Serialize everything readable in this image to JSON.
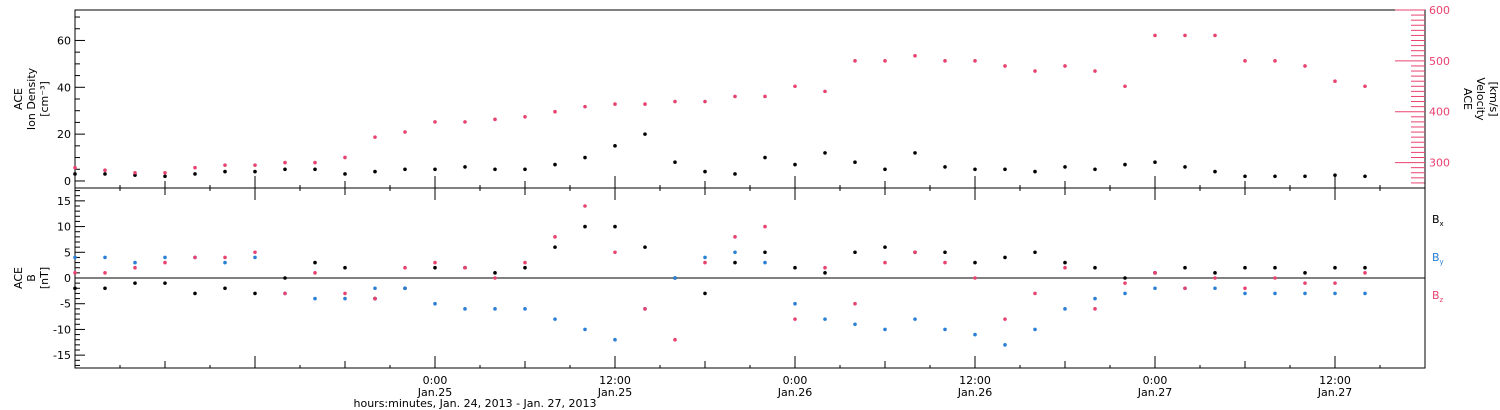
{
  "chart_data": [
    {
      "panel": "ion-density-velocity",
      "type": "scatter",
      "left_axis": {
        "label_lines": [
          "ACE",
          "Ion Density",
          "[cm⁻³]"
        ],
        "ylim": [
          -3,
          73
        ],
        "ticks": [
          0,
          20,
          40,
          60
        ],
        "tick_labels": [
          "0",
          "20",
          "40",
          "60"
        ]
      },
      "right_axis": {
        "label_lines": [
          "ACE",
          "Velocity",
          "[km/s]"
        ],
        "ylim": [
          250,
          600
        ],
        "ticks": [
          300,
          400,
          500,
          600
        ],
        "tick_labels": [
          "300",
          "400",
          "500",
          "600"
        ],
        "color": "#e8436f"
      },
      "series": [
        {
          "key": "density",
          "axis": "left",
          "color": "#000000",
          "x": [
            0,
            2,
            4,
            6,
            8,
            10,
            12,
            14,
            16,
            18,
            20,
            22,
            24,
            26,
            28,
            30,
            32,
            34,
            36,
            38,
            40,
            42,
            44,
            46,
            48,
            50,
            52,
            54,
            56,
            58,
            60,
            62,
            64,
            66,
            68,
            70,
            72,
            74,
            76,
            78,
            80,
            82,
            84,
            86
          ],
          "y": [
            3,
            3,
            2.5,
            2,
            3,
            4,
            4,
            5,
            5,
            3,
            4,
            5,
            5,
            6,
            5,
            5,
            7,
            10,
            15,
            20,
            8,
            4,
            3,
            10,
            7,
            12,
            8,
            5,
            12,
            6,
            5,
            5,
            4,
            6,
            5,
            7,
            8,
            6,
            4,
            2,
            2,
            2,
            2.5,
            2
          ]
        },
        {
          "key": "velocity",
          "axis": "right",
          "color": "#e8436f",
          "x": [
            0,
            2,
            4,
            6,
            8,
            10,
            12,
            14,
            16,
            18,
            20,
            22,
            24,
            26,
            28,
            30,
            32,
            34,
            36,
            38,
            40,
            42,
            44,
            46,
            48,
            50,
            52,
            54,
            56,
            58,
            60,
            62,
            64,
            66,
            68,
            70,
            72,
            74,
            76,
            78,
            80,
            82,
            84,
            86
          ],
          "y": [
            290,
            285,
            280,
            280,
            290,
            295,
            295,
            300,
            300,
            310,
            350,
            360,
            380,
            380,
            385,
            390,
            400,
            410,
            415,
            415,
            420,
            420,
            430,
            430,
            450,
            440,
            500,
            500,
            510,
            500,
            500,
            490,
            480,
            490,
            480,
            450,
            550,
            550,
            550,
            500,
            500,
            490,
            460,
            450
          ]
        }
      ]
    },
    {
      "panel": "magnetic-field",
      "type": "scatter",
      "y_axis": {
        "label_lines": [
          "ACE",
          "B",
          "[nT]"
        ],
        "ylim": [
          -17.5,
          17.5
        ],
        "ticks": [
          -15,
          -10,
          -5,
          0,
          5,
          10,
          15
        ],
        "tick_labels": [
          "-15",
          "-10",
          "-5",
          "0",
          "5",
          "10",
          "15"
        ],
        "zero_line": true
      },
      "series": [
        {
          "key": "bx",
          "label_main": "B",
          "label_sub": "x",
          "color": "#000000",
          "x": [
            0,
            2,
            4,
            6,
            8,
            10,
            12,
            14,
            16,
            18,
            20,
            22,
            24,
            26,
            28,
            30,
            32,
            34,
            36,
            38,
            40,
            42,
            44,
            46,
            48,
            50,
            52,
            54,
            56,
            58,
            60,
            62,
            64,
            66,
            68,
            70,
            72,
            74,
            76,
            78,
            80,
            82,
            84,
            86
          ],
          "y": [
            -2,
            -2,
            -1,
            -1,
            -3,
            -2,
            -3,
            0,
            3,
            2,
            -4,
            -2,
            2,
            2,
            1,
            2,
            6,
            10,
            10,
            6,
            0,
            -3,
            3,
            5,
            2,
            1,
            5,
            6,
            5,
            5,
            3,
            4,
            5,
            3,
            2,
            0,
            1,
            2,
            1,
            2,
            2,
            1,
            2,
            2
          ]
        },
        {
          "key": "by",
          "label_main": "B",
          "label_sub": "y",
          "color": "#2a7fd6",
          "x": [
            0,
            2,
            4,
            6,
            8,
            10,
            12,
            14,
            16,
            18,
            20,
            22,
            24,
            26,
            28,
            30,
            32,
            34,
            36,
            38,
            40,
            42,
            44,
            46,
            48,
            50,
            52,
            54,
            56,
            58,
            60,
            62,
            64,
            66,
            68,
            70,
            72,
            74,
            76,
            78,
            80,
            82,
            84,
            86
          ],
          "y": [
            4,
            4,
            3,
            4,
            4,
            3,
            4,
            -3,
            -4,
            -4,
            -2,
            -2,
            -5,
            -6,
            -6,
            -6,
            -8,
            -10,
            -12,
            -6,
            0,
            4,
            5,
            3,
            -5,
            -8,
            -9,
            -10,
            -8,
            -10,
            -11,
            -13,
            -10,
            -6,
            -4,
            -3,
            -2,
            -2,
            -2,
            -3,
            -3,
            -3,
            -3,
            -3
          ]
        },
        {
          "key": "bz",
          "label_main": "B",
          "label_sub": "z",
          "color": "#e8436f",
          "x": [
            0,
            2,
            4,
            6,
            8,
            10,
            12,
            14,
            16,
            18,
            20,
            22,
            24,
            26,
            28,
            30,
            32,
            34,
            36,
            38,
            40,
            42,
            44,
            46,
            48,
            50,
            52,
            54,
            56,
            58,
            60,
            62,
            64,
            66,
            68,
            70,
            72,
            74,
            76,
            78,
            80,
            82,
            84,
            86
          ],
          "y": [
            1,
            1,
            2,
            3,
            4,
            4,
            5,
            -3,
            1,
            -3,
            -4,
            2,
            3,
            2,
            0,
            3,
            8,
            14,
            5,
            -6,
            -12,
            3,
            8,
            10,
            -8,
            2,
            -5,
            3,
            5,
            3,
            0,
            -8,
            -3,
            2,
            -6,
            -1,
            1,
            -2,
            0,
            -2,
            0,
            -1,
            -1,
            1
          ]
        }
      ]
    }
  ],
  "x_axis": {
    "xlim": [
      0,
      90
    ],
    "major_ticks": [
      6,
      18,
      30,
      42,
      54,
      66,
      78
    ],
    "tick_labels": [
      {
        "x": 24,
        "time": "0:00",
        "date": "Jan.25"
      },
      {
        "x": 36,
        "time": "12:00",
        "date": "Jan.25"
      },
      {
        "x": 48,
        "time": "0:00",
        "date": "Jan.26"
      },
      {
        "x": 60,
        "time": "12:00",
        "date": "Jan.26"
      },
      {
        "x": 72,
        "time": "0:00",
        "date": "Jan.27"
      },
      {
        "x": 84,
        "time": "12:00",
        "date": "Jan.27"
      }
    ],
    "title": "hours:minutes, Jan. 24, 2013 - Jan. 27, 2013"
  }
}
